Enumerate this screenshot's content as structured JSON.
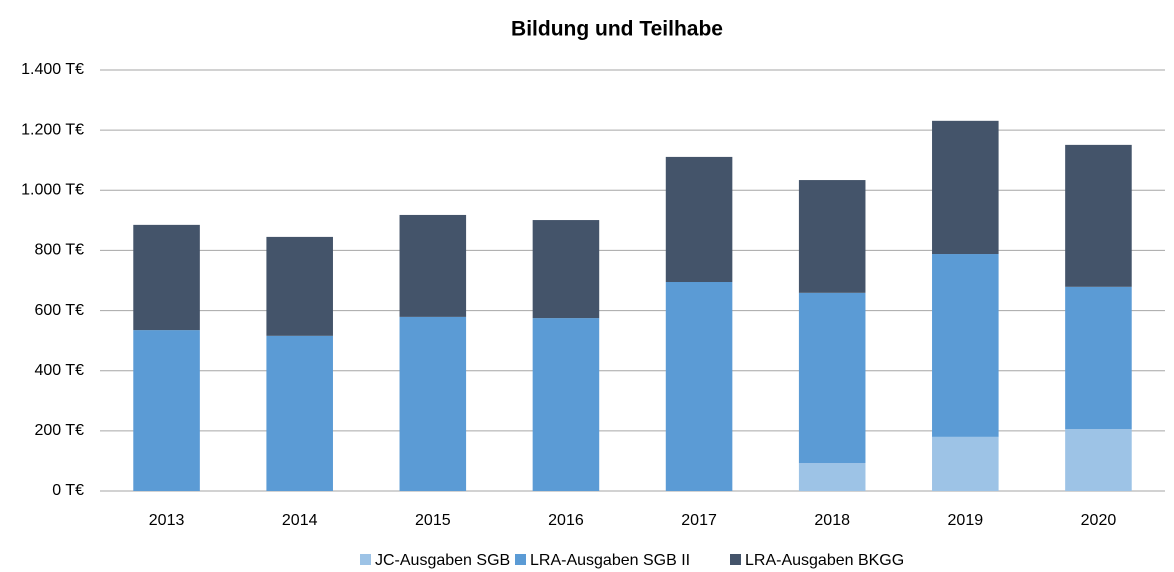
{
  "chart_data": {
    "type": "stacked_bar",
    "title": "Bildung und Teilhabe",
    "categories": [
      "2013",
      "2014",
      "2015",
      "2016",
      "2017",
      "2018",
      "2019",
      "2020"
    ],
    "series": [
      {
        "name": "JC-Ausgaben SGB II",
        "color": "#9dc3e6",
        "values": [
          null,
          null,
          null,
          null,
          null,
          93,
          180,
          206
        ]
      },
      {
        "name": "LRA-Ausgaben SGB II",
        "color": "#5b9bd5",
        "values": [
          535,
          516,
          579,
          575,
          695,
          566,
          608,
          473
        ]
      },
      {
        "name": "LRA-Ausgaben BKGG",
        "color": "#44546a",
        "values": [
          350,
          329,
          339,
          326,
          416,
          375,
          443,
          472
        ]
      }
    ],
    "ylim": [
      0,
      1400
    ],
    "yticks": [
      {
        "value": 0,
        "label": "0 T€"
      },
      {
        "value": 200,
        "label": "200 T€"
      },
      {
        "value": 400,
        "label": "400 T€"
      },
      {
        "value": 600,
        "label": "600 T€"
      },
      {
        "value": 800,
        "label": "800 T€"
      },
      {
        "value": 1000,
        "label": "1.000 T€"
      },
      {
        "value": 1200,
        "label": "1.200 T€"
      },
      {
        "value": 1400,
        "label": "1.400 T€"
      }
    ],
    "grid": true,
    "legend": "bottom"
  }
}
